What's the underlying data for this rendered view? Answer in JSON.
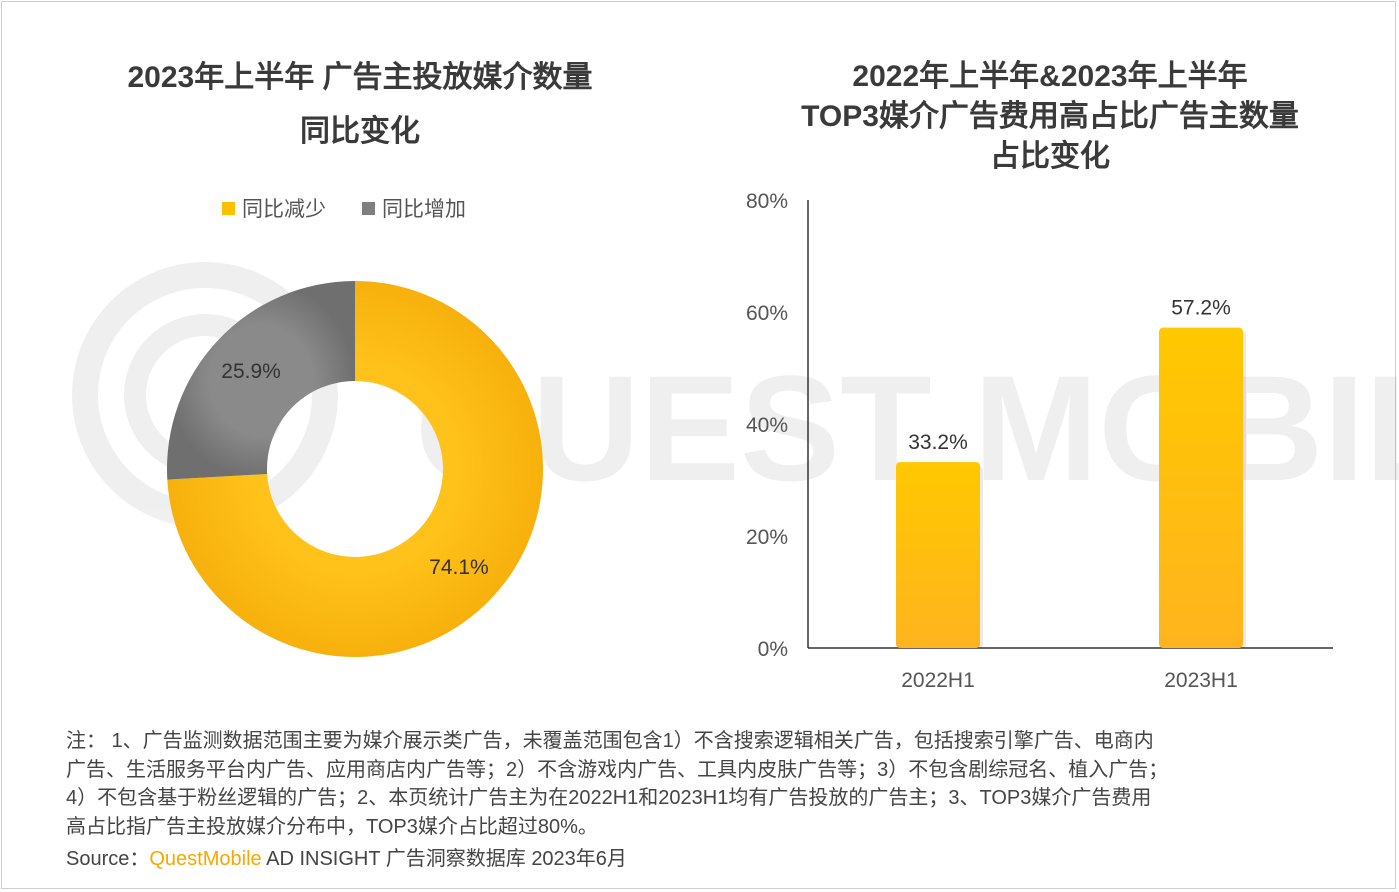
{
  "left_chart": {
    "title_lines": [
      "2023年上半年 广告主投放媒介数量",
      "同比变化"
    ],
    "legend": [
      {
        "label": "同比减少",
        "color": "#FFC000"
      },
      {
        "label": "同比增加",
        "color": "#7F7F7F"
      }
    ]
  },
  "right_chart": {
    "title_lines": [
      "2022年上半年&2023年上半年",
      "TOP3媒介广告费用高占比广告主数量",
      "占比变化"
    ]
  },
  "chart_data": [
    {
      "type": "pie",
      "subtype": "donut",
      "title": "2023年上半年 广告主投放媒介数量同比变化",
      "slices": [
        {
          "label": "同比减少",
          "value": 74.1,
          "display": "74.1%",
          "color": "#FFC000"
        },
        {
          "label": "同比增加",
          "value": 25.9,
          "display": "25.9%",
          "color": "#7F7F7F"
        }
      ],
      "legend_position": "top"
    },
    {
      "type": "bar",
      "title": "2022年上半年&2023年上半年TOP3媒介广告费用高占比广告主数量占比变化",
      "categories": [
        "2022H1",
        "2023H1"
      ],
      "values": [
        33.2,
        57.2
      ],
      "data_labels": [
        "33.2%",
        "57.2%"
      ],
      "ylim": [
        0,
        80
      ],
      "yticks": [
        0,
        20,
        40,
        60,
        80
      ],
      "ytick_labels": [
        "0%",
        "20%",
        "40%",
        "60%",
        "80%"
      ],
      "unit": "%",
      "bar_color": "#FFC000",
      "grid": false
    }
  ],
  "notes": {
    "lines": [
      "注： 1、广告监测数据范围主要为媒介展示类广告，未覆盖范围包含1）不含搜索逻辑相关广告，包括搜索引擎广告、电商内",
      "广告、生活服务平台内广告、应用商店内广告等；2）不含游戏内广告、工具内皮肤广告等；3）不包含剧综冠名、植入广告；",
      "4）不包含基于粉丝逻辑的广告；2、本页统计广告主为在2022H1和2023H1均有广告投放的广告主；3、TOP3媒介广告费用",
      "高占比指广告主投放媒介分布中，TOP3媒介占比超过80%。"
    ]
  },
  "source": {
    "prefix": "Source：",
    "brand": "QuestMobile",
    "rest": " AD INSIGHT 广告洞察数据库 2023年6月"
  },
  "watermark": {
    "text": "QUEST MOBILE"
  }
}
